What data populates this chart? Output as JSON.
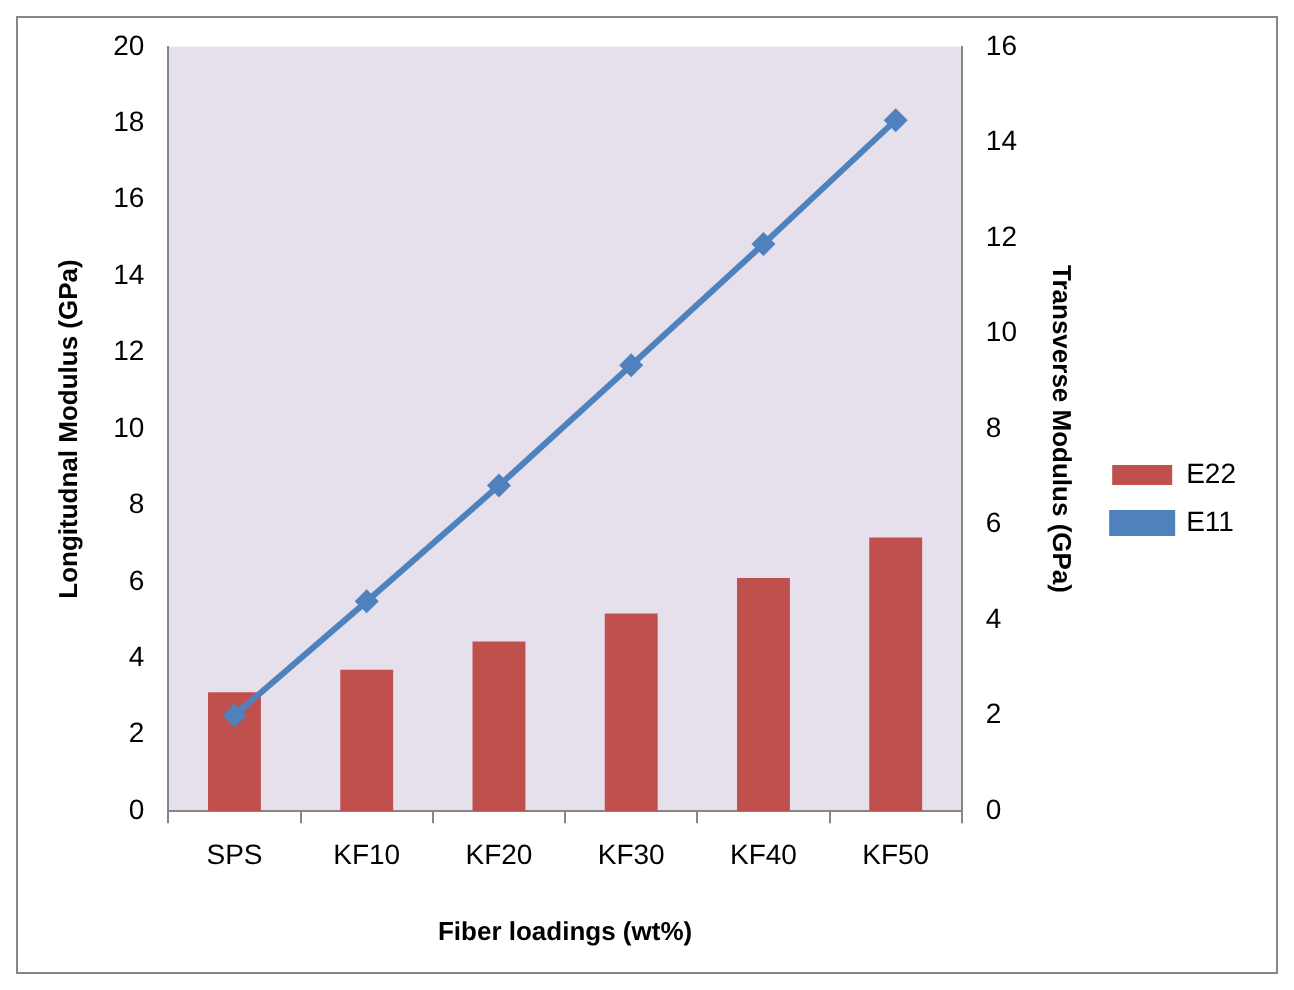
{
  "chart_data": {
    "type": "bar",
    "xlabel": "Fiber loadings (wt%)",
    "ylabel": "Longitudnal Modulus (GPa)",
    "y2label": "Transverse Modulus (GPa)",
    "categories": [
      "SPS",
      "KF10",
      "KF20",
      "KF30",
      "KF40",
      "KF50"
    ],
    "series": [
      {
        "name": "E22",
        "axis": "y2",
        "color": "#c0504d",
        "values": [
          2.49,
          2.96,
          3.55,
          4.14,
          4.88,
          5.73
        ]
      },
      {
        "name": "E11",
        "type": "line",
        "color": "#4f81bd",
        "marker": "diamond",
        "values": [
          2.51,
          5.49,
          8.52,
          11.67,
          14.84,
          18.08
        ]
      }
    ],
    "ylim": [
      0,
      20
    ],
    "yticks": [
      0,
      2,
      4,
      6,
      8,
      10,
      12,
      14,
      16,
      18,
      20
    ],
    "y2lim": [
      0,
      16
    ],
    "y2ticks": [
      0,
      2,
      4,
      6,
      8,
      10,
      12,
      14,
      16
    ],
    "grid": false,
    "legend": "right"
  }
}
